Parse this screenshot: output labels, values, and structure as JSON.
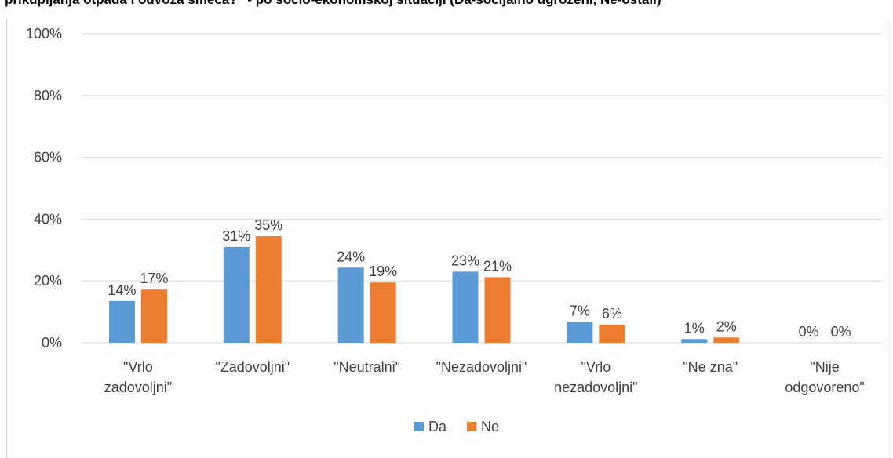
{
  "chart_data": {
    "type": "bar",
    "title": "prikupljanja otpada i odvoza smeća?\" - po socio-ekonomskoj situaciji (Da-socijalno ugroženi, Ne-ostali)",
    "categories": [
      [
        "\"Vrlo",
        "zadovoljni\""
      ],
      [
        "\"Zadovoljni\""
      ],
      [
        "\"Neutralni\""
      ],
      [
        "\"Nezadovoljni\""
      ],
      [
        "\"Vrlo",
        "nezadovoljni\""
      ],
      [
        "\"Ne zna\""
      ],
      [
        "\"Nije",
        "odgovoreno\""
      ]
    ],
    "series": [
      {
        "name": "Da",
        "color": "#5b9bd5",
        "values": [
          13.5,
          31,
          24.3,
          23,
          6.7,
          1.2,
          0
        ],
        "labels": [
          "14%",
          "31%",
          "24%",
          "23%",
          "7%",
          "1%",
          "0%"
        ]
      },
      {
        "name": "Ne",
        "color": "#ed7d31",
        "values": [
          17.2,
          34.5,
          19.5,
          21.2,
          5.8,
          1.7,
          0
        ],
        "labels": [
          "17%",
          "35%",
          "19%",
          "21%",
          "6%",
          "2%",
          "0%"
        ]
      }
    ],
    "ylim": [
      0,
      100
    ],
    "yticks": [
      0,
      20,
      40,
      60,
      80,
      100
    ],
    "ytick_labels": [
      "0%",
      "20%",
      "40%",
      "60%",
      "80%",
      "100%"
    ],
    "grid": true,
    "legend": "bottom-center"
  }
}
